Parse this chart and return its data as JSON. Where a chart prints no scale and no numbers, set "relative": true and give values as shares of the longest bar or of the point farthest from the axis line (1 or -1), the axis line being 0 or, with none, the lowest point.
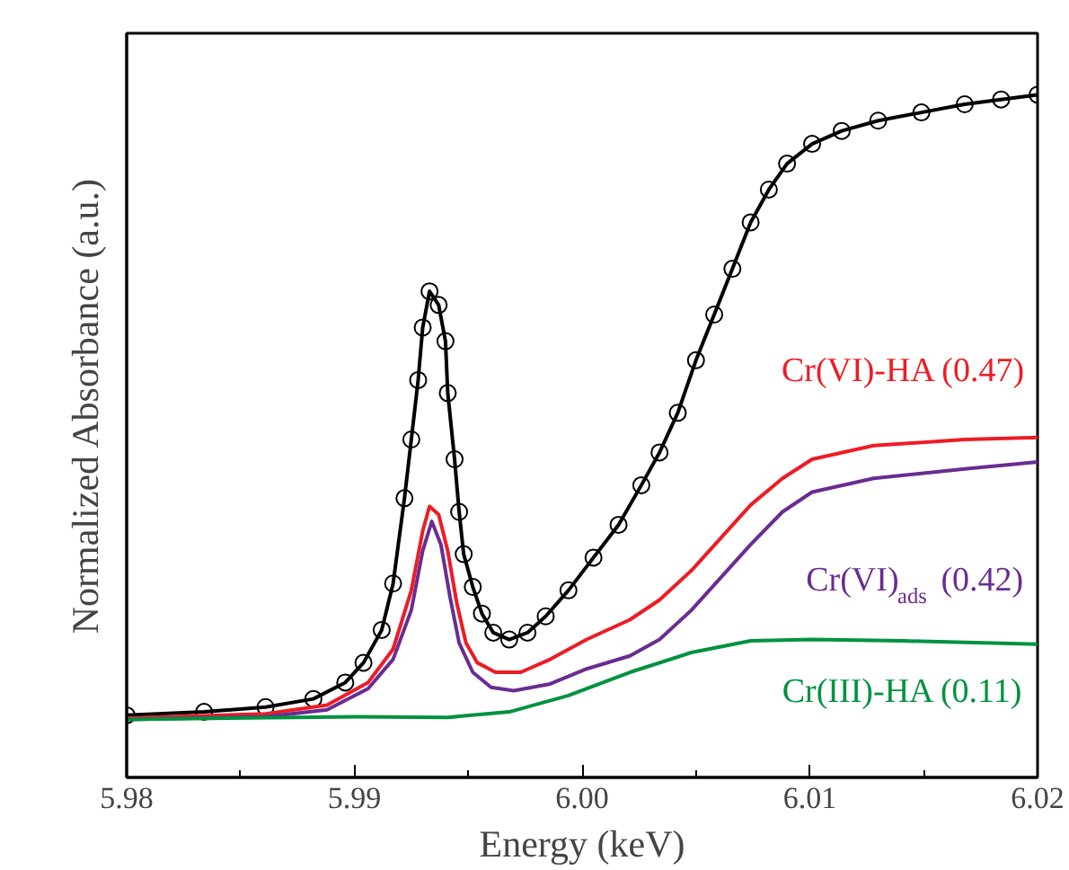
{
  "chart_data": {
    "type": "line",
    "relative": true,
    "xlabel": "Energy (keV)",
    "ylabel": "Normalized Absorbance (a.u.)",
    "xlim": [
      5.98,
      6.02
    ],
    "xticks": [
      {
        "value": 5.98,
        "label": "5.98"
      },
      {
        "value": 5.985,
        "label": null
      },
      {
        "value": 5.99,
        "label": "5.99"
      },
      {
        "value": 5.995,
        "label": null
      },
      {
        "value": 6.0,
        "label": "6.00"
      },
      {
        "value": 6.005,
        "label": null
      },
      {
        "value": 6.01,
        "label": "6.01"
      },
      {
        "value": 6.015,
        "label": null
      },
      {
        "value": 6.02,
        "label": "6.02"
      }
    ],
    "grid": false,
    "series": [
      {
        "type": "scatter",
        "marker": "circle",
        "color": "#000000",
        "x": [
          5.98,
          5.9834,
          5.9861,
          5.9882,
          5.9896,
          5.9904,
          5.9912,
          5.9917,
          5.9922,
          5.9925,
          5.9928,
          5.993,
          5.9933,
          5.9937,
          5.994,
          5.9941,
          5.9944,
          5.9946,
          5.9948,
          5.9952,
          5.9956,
          5.9961,
          5.9968,
          5.9976,
          5.9984,
          5.9994,
          6.0005,
          6.0016,
          6.0026,
          6.0034,
          6.0042,
          6.005,
          6.0058,
          6.0066,
          6.0074,
          6.0082,
          6.009,
          6.0101,
          6.0114,
          6.013,
          6.0149,
          6.0168,
          6.0184,
          6.02
        ],
        "values": [
          0.091,
          0.096,
          0.103,
          0.115,
          0.139,
          0.168,
          0.216,
          0.284,
          0.409,
          0.495,
          0.582,
          0.659,
          0.712,
          0.692,
          0.639,
          0.563,
          0.466,
          0.389,
          0.327,
          0.279,
          0.24,
          0.212,
          0.202,
          0.212,
          0.236,
          0.274,
          0.322,
          0.37,
          0.428,
          0.476,
          0.534,
          0.611,
          0.678,
          0.745,
          0.813,
          0.861,
          0.899,
          0.928,
          0.947,
          0.962,
          0.974,
          0.986,
          0.993,
          1.0
        ]
      },
      {
        "color": "#000000",
        "x": [
          5.98,
          5.9834,
          5.9861,
          5.9882,
          5.9896,
          5.9904,
          5.9912,
          5.9917,
          5.9922,
          5.9925,
          5.9928,
          5.993,
          5.9933,
          5.9937,
          5.994,
          5.9941,
          5.9944,
          5.9946,
          5.9948,
          5.9952,
          5.9956,
          5.9961,
          5.9968,
          5.9976,
          5.9984,
          5.9994,
          6.0005,
          6.0016,
          6.0026,
          6.0034,
          6.0042,
          6.005,
          6.0058,
          6.0066,
          6.0074,
          6.0082,
          6.009,
          6.0101,
          6.0114,
          6.013,
          6.0149,
          6.0168,
          6.0184,
          6.02
        ],
        "values": [
          0.091,
          0.096,
          0.103,
          0.115,
          0.139,
          0.168,
          0.216,
          0.284,
          0.409,
          0.495,
          0.582,
          0.659,
          0.712,
          0.692,
          0.639,
          0.563,
          0.466,
          0.389,
          0.327,
          0.279,
          0.24,
          0.212,
          0.202,
          0.212,
          0.236,
          0.274,
          0.322,
          0.37,
          0.428,
          0.476,
          0.534,
          0.611,
          0.678,
          0.745,
          0.813,
          0.861,
          0.899,
          0.928,
          0.947,
          0.962,
          0.974,
          0.986,
          0.993,
          1.0
        ]
      },
      {
        "name": "Cr(VI)-HA (0.47)",
        "color": "#ed1c24",
        "x": [
          5.98,
          5.9861,
          5.9888,
          5.9906,
          5.9917,
          5.9925,
          5.993,
          5.9933,
          5.9937,
          5.9941,
          5.9945,
          5.9949,
          5.9954,
          5.9962,
          5.9973,
          5.9986,
          6.0002,
          6.0021,
          6.0034,
          6.0048,
          6.0061,
          6.0074,
          6.0088,
          6.0101,
          6.0128,
          6.0168,
          6.02
        ],
        "values": [
          0.087,
          0.093,
          0.106,
          0.139,
          0.188,
          0.274,
          0.361,
          0.397,
          0.385,
          0.332,
          0.255,
          0.197,
          0.168,
          0.154,
          0.154,
          0.173,
          0.202,
          0.231,
          0.26,
          0.303,
          0.351,
          0.399,
          0.438,
          0.466,
          0.486,
          0.495,
          0.498
        ]
      },
      {
        "name": "Cr(VI)$_{ads}$ (0.42)",
        "color": "#6a2c91",
        "x": [
          5.98,
          5.9861,
          5.9888,
          5.9906,
          5.9917,
          5.9925,
          5.993,
          5.9934,
          5.9938,
          5.9942,
          5.9946,
          5.9952,
          5.996,
          5.997,
          5.9986,
          6.0002,
          6.0021,
          6.0034,
          6.0048,
          6.0061,
          6.0074,
          6.0088,
          6.0101,
          6.0128,
          6.0168,
          6.02
        ],
        "values": [
          0.085,
          0.089,
          0.099,
          0.13,
          0.173,
          0.245,
          0.332,
          0.375,
          0.341,
          0.264,
          0.197,
          0.154,
          0.132,
          0.127,
          0.137,
          0.159,
          0.178,
          0.202,
          0.245,
          0.293,
          0.341,
          0.389,
          0.418,
          0.438,
          0.452,
          0.462
        ]
      },
      {
        "name": "Cr(III)-HA (0.11)",
        "color": "#00923f",
        "x": [
          5.98,
          5.9901,
          5.9941,
          5.9968,
          5.9994,
          6.0021,
          6.0048,
          6.0074,
          6.0101,
          6.0141,
          6.02
        ],
        "values": [
          0.085,
          0.089,
          0.088,
          0.096,
          0.12,
          0.154,
          0.183,
          0.2,
          0.202,
          0.2,
          0.195
        ]
      }
    ]
  }
}
